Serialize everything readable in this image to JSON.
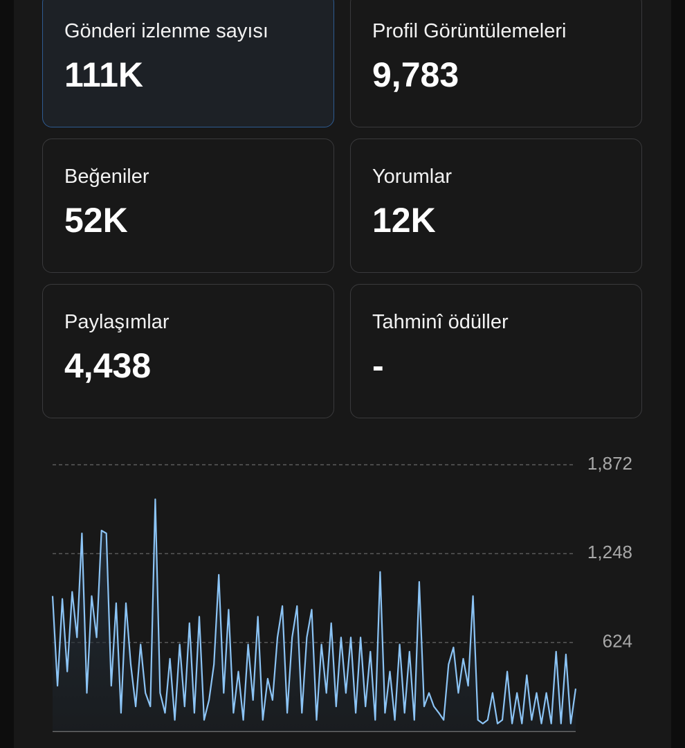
{
  "cards": [
    {
      "label": "Gönderi izlenme sayısı",
      "value": "111K"
    },
    {
      "label": "Profil Görüntülemeleri",
      "value": "9,783"
    },
    {
      "label": "Beğeniler",
      "value": "52K"
    },
    {
      "label": "Yorumlar",
      "value": "12K"
    },
    {
      "label": "Paylaşımlar",
      "value": "4,438"
    },
    {
      "label": "Tahminî ödüller",
      "value": "-"
    }
  ],
  "chart_data": {
    "type": "line",
    "color": "#8cc4f5",
    "grid": true,
    "ylim": [
      0,
      1872
    ],
    "yticks": [
      624,
      {
        "value": 1248,
        "label": "1,248"
      },
      {
        "value": 1872,
        "label": "1,872"
      }
    ],
    "values": [
      950,
      320,
      930,
      420,
      980,
      660,
      1390,
      270,
      950,
      660,
      1410,
      1390,
      320,
      900,
      130,
      900,
      470,
      175,
      610,
      270,
      175,
      1630,
      270,
      130,
      510,
      80,
      610,
      175,
      760,
      130,
      805,
      80,
      220,
      470,
      1100,
      270,
      855,
      130,
      420,
      80,
      610,
      220,
      805,
      80,
      370,
      220,
      660,
      880,
      130,
      660,
      880,
      130,
      660,
      855,
      80,
      610,
      270,
      760,
      175,
      660,
      270,
      660,
      130,
      660,
      175,
      560,
      80,
      1120,
      130,
      420,
      80,
      610,
      130,
      560,
      80,
      1050,
      175,
      270,
      175,
      130,
      80,
      470,
      590,
      270,
      510,
      320,
      950,
      80,
      55,
      80,
      270,
      55,
      80,
      420,
      55,
      270,
      55,
      395,
      80,
      270,
      55,
      270,
      55,
      560,
      55,
      540,
      55,
      300
    ]
  }
}
